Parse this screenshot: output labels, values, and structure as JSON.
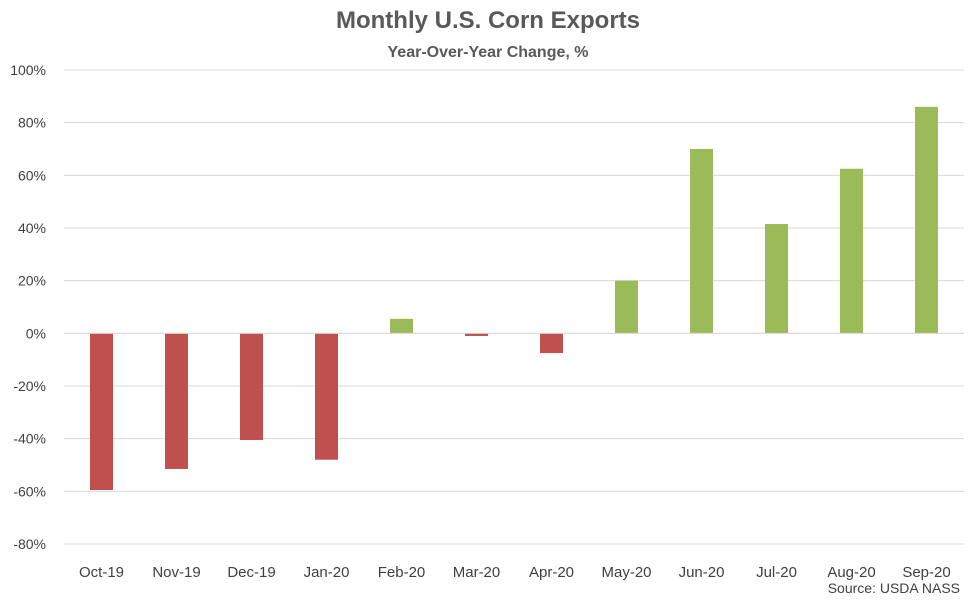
{
  "chart_data": {
    "type": "bar",
    "title": "Monthly U.S. Corn Exports",
    "subtitle": "Year-Over-Year Change, %",
    "source": "Source: USDA NASS",
    "categories": [
      "Oct-19",
      "Nov-19",
      "Dec-19",
      "Jan-20",
      "Feb-20",
      "Mar-20",
      "Apr-20",
      "May-20",
      "Jun-20",
      "Jul-20",
      "Aug-20",
      "Sep-20"
    ],
    "values": [
      -59.5,
      -51.5,
      -40.5,
      -48.0,
      5.5,
      -1.0,
      -7.5,
      20.0,
      70.0,
      41.5,
      62.5,
      86.0
    ],
    "ylim": [
      -80,
      100
    ],
    "yticks": [
      100,
      80,
      60,
      40,
      20,
      0,
      -20,
      -40,
      -60,
      -80
    ],
    "ytick_labels": [
      "100%",
      "80%",
      "60%",
      "40%",
      "20%",
      "0%",
      "-20%",
      "-40%",
      "-60%",
      "-80%"
    ],
    "grid": true,
    "colors": {
      "positive": "#9BBB59",
      "negative": "#C0504D",
      "grid": "#D9D9D9",
      "axis": "#D9D9D9"
    }
  }
}
